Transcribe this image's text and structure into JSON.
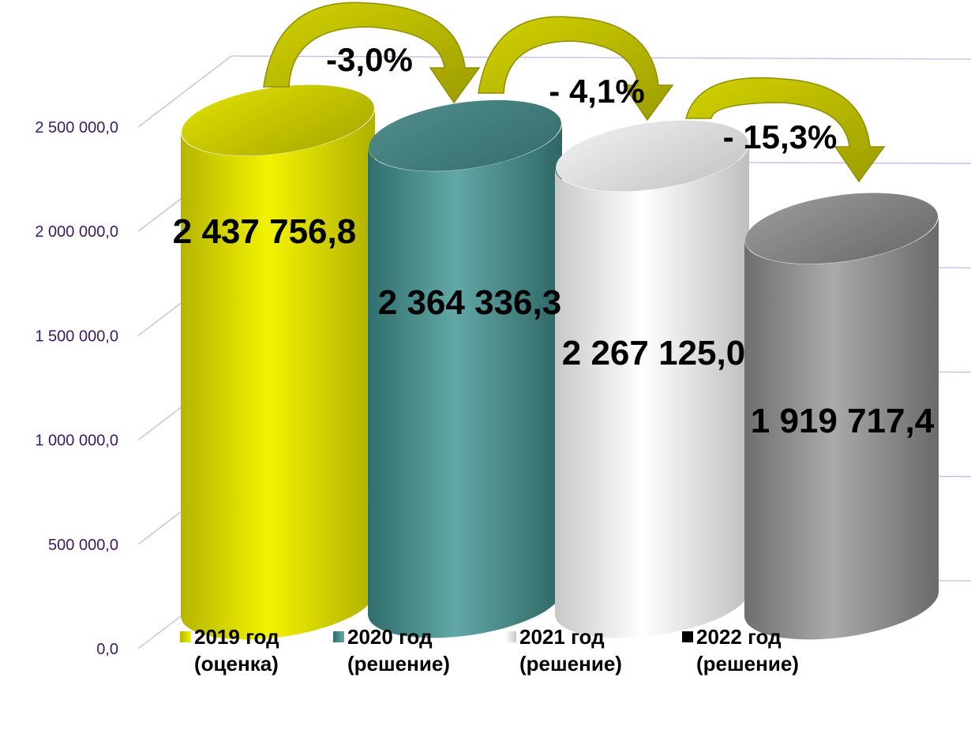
{
  "chart_data": {
    "type": "bar",
    "categories": [
      "2019 год (оценка)",
      "2020 год (решение)",
      "2021 год (решение)",
      "2022 год (решение)"
    ],
    "values": [
      2437756.8,
      2364336.3,
      2267125.0,
      1919717.4
    ],
    "value_labels": [
      "2 437 756,8",
      "2 364 336,3",
      "2 267 125,0",
      "1 919 717,4"
    ],
    "ylim": [
      0,
      2500000
    ],
    "yticks": [
      0,
      500000,
      1000000,
      1500000,
      2000000,
      2500000
    ],
    "ytick_labels": [
      "0,0",
      "500 000,0",
      "1 000 000,0",
      "1 500 000,0",
      "2 000 000,0",
      "2 500 000,0"
    ],
    "changes": [
      "-3,0%",
      "- 4,1%",
      "- 15,3%"
    ],
    "grid": true,
    "legend_position": "bottom",
    "legend": [
      {
        "line1": "2019 год",
        "line2": "(оценка)",
        "color": "#d4d400"
      },
      {
        "line1": "2020 год",
        "line2": "(решение)",
        "color": "#4a8a88"
      },
      {
        "line1": "2021 год",
        "line2": "(решение)",
        "color": "#f0f0f0"
      },
      {
        "line1": "2022 год",
        "line2": "(решение)",
        "color": "#000000"
      }
    ],
    "colors": [
      "#d4d400",
      "#4a8a88",
      "#e8e8e8",
      "#8a8a8a"
    ],
    "arrow_color": "#b8b800"
  }
}
